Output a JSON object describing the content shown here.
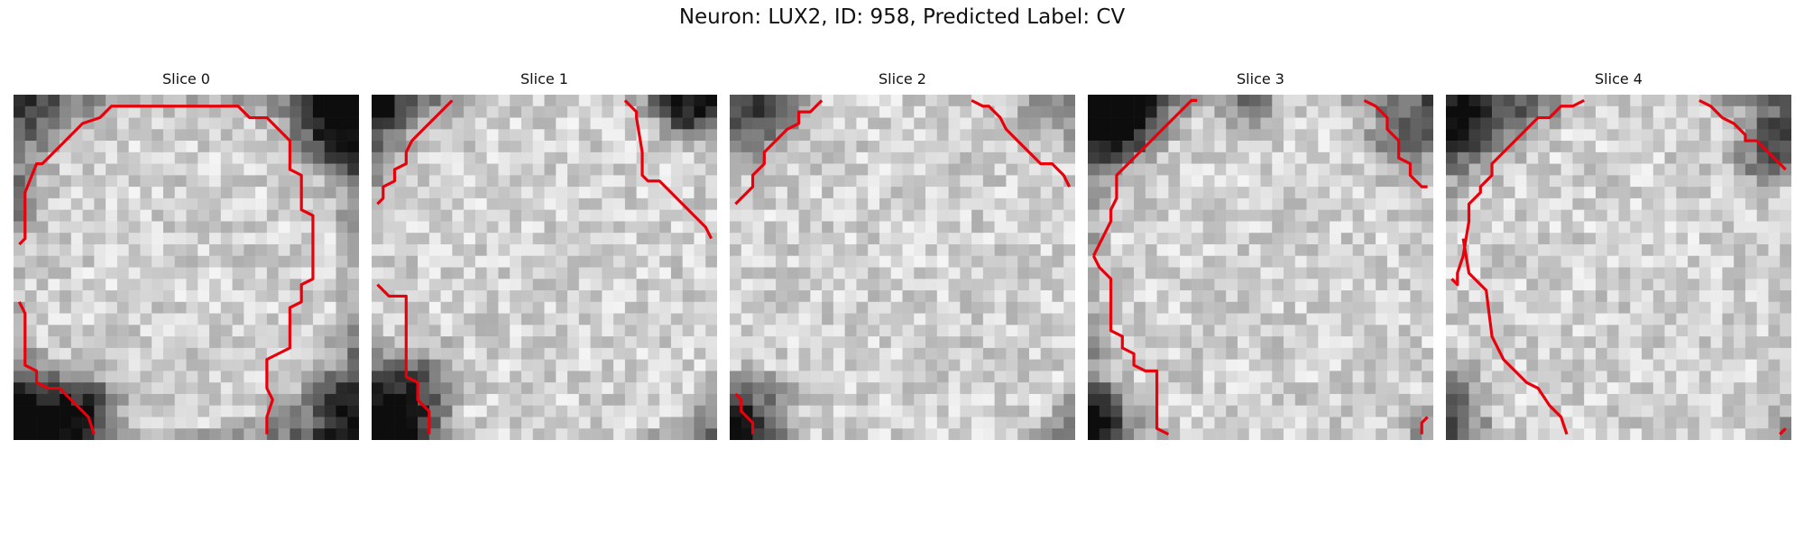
{
  "figure": {
    "title": "Neuron: LUX2, ID: 958, Predicted Label: CV"
  },
  "colors": {
    "contour": "#e8000b",
    "background": "#ffffff"
  },
  "slices": [
    {
      "title": "Slice 0"
    },
    {
      "title": "Slice 1"
    },
    {
      "title": "Slice 2"
    },
    {
      "title": "Slice 3"
    },
    {
      "title": "Slice 4"
    }
  ]
}
